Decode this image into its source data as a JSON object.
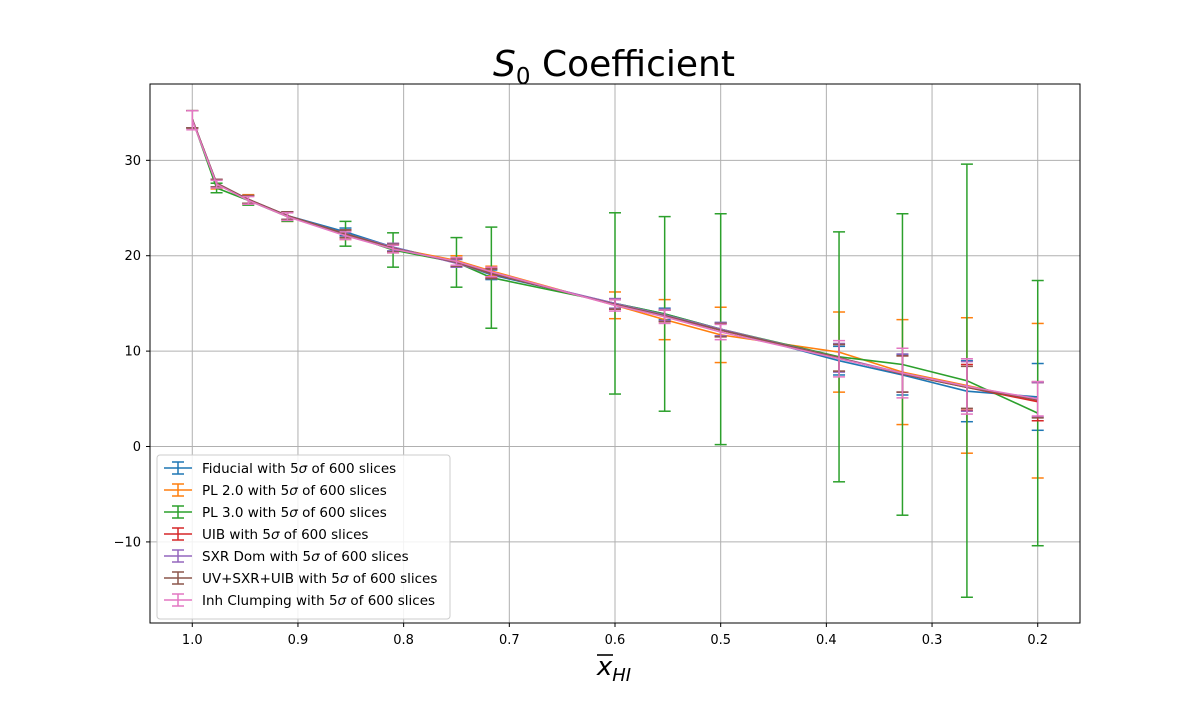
{
  "chart_data": {
    "type": "line",
    "title": "S₀ Coefficient",
    "title_parts": {
      "main": "S",
      "subscript": "0",
      "rest": " Coefficient"
    },
    "xlabel": "x̅_HI",
    "xlabel_parts": {
      "main": "x",
      "subscript": "HI",
      "overline": true
    },
    "ylabel": "",
    "xlim": [
      1.04,
      0.16
    ],
    "ylim": [
      -18.5,
      38
    ],
    "x_inverted": true,
    "grid": true,
    "legend_position": "lower-left",
    "x_ticks": [
      1.0,
      0.9,
      0.8,
      0.7,
      0.6,
      0.5,
      0.4,
      0.3,
      0.2
    ],
    "x_tick_labels": [
      "1.0",
      "0.9",
      "0.8",
      "0.7",
      "0.6",
      "0.5",
      "0.4",
      "0.3",
      "0.2"
    ],
    "y_ticks": [
      -10,
      0,
      10,
      20,
      30
    ],
    "y_tick_labels": [
      "−10",
      "0",
      "10",
      "20",
      "30"
    ],
    "x": [
      1.0,
      0.977,
      0.947,
      0.91,
      0.855,
      0.81,
      0.75,
      0.717,
      0.6,
      0.553,
      0.5,
      0.388,
      0.328,
      0.267,
      0.2
    ],
    "series": [
      {
        "name": "Fiducial with 5σ of 600 slices",
        "legend_parts": [
          "Fiducial with 5",
          "σ",
          " of 600 slices"
        ],
        "color": "#1f77b4",
        "values": [
          34.3,
          27.6,
          25.9,
          24.2,
          22.5,
          20.9,
          19.3,
          18.0,
          15.0,
          13.9,
          12.3,
          9.0,
          7.5,
          5.8,
          5.2
        ],
        "errors": [
          0.9,
          0.4,
          0.4,
          0.4,
          0.4,
          0.4,
          0.5,
          0.5,
          0.5,
          0.6,
          0.7,
          1.5,
          2.1,
          3.2,
          3.5
        ]
      },
      {
        "name": "PL 2.0 with 5σ of 600 slices",
        "legend_parts": [
          "PL 2.0 with 5",
          "σ",
          " of 600 slices"
        ],
        "color": "#ff7f0e",
        "values": [
          34.3,
          27.5,
          25.9,
          24.1,
          22.2,
          20.8,
          19.5,
          18.4,
          14.8,
          13.3,
          11.7,
          9.9,
          7.8,
          6.4,
          4.8
        ],
        "errors": [
          0.9,
          0.5,
          0.5,
          0.5,
          0.5,
          0.5,
          0.5,
          0.5,
          1.4,
          2.1,
          2.9,
          4.2,
          5.5,
          7.1,
          8.1
        ]
      },
      {
        "name": "PL 3.0 with 5σ of 600 slices",
        "legend_parts": [
          "PL 3.0 with 5",
          "σ",
          " of 600 slices"
        ],
        "color": "#2ca02c",
        "values": [
          34.3,
          27.1,
          25.8,
          24.1,
          22.3,
          20.6,
          19.3,
          17.7,
          15.0,
          13.9,
          12.3,
          9.4,
          8.6,
          6.9,
          3.5
        ],
        "errors": [
          0.9,
          0.5,
          0.5,
          0.5,
          1.3,
          1.8,
          2.6,
          5.3,
          9.5,
          10.2,
          12.1,
          13.1,
          15.8,
          22.7,
          13.9
        ]
      },
      {
        "name": "UIB with 5σ of 600 slices",
        "legend_parts": [
          "UIB with 5",
          "σ",
          " of 600 slices"
        ],
        "color": "#d62728",
        "values": [
          34.3,
          27.6,
          25.9,
          24.2,
          22.3,
          20.8,
          19.3,
          18.2,
          14.9,
          13.7,
          12.2,
          9.3,
          7.6,
          6.2,
          4.7
        ],
        "errors": [
          0.9,
          0.4,
          0.4,
          0.4,
          0.4,
          0.4,
          0.4,
          0.5,
          0.5,
          0.6,
          0.7,
          1.4,
          1.9,
          2.4,
          2.0
        ]
      },
      {
        "name": "SXR Dom with 5σ of 600 slices",
        "legend_parts": [
          "SXR Dom with 5",
          "σ",
          " of 600 slices"
        ],
        "color": "#9467bd",
        "values": [
          34.3,
          27.6,
          25.9,
          24.2,
          22.3,
          20.9,
          19.2,
          18.1,
          15.0,
          13.8,
          12.3,
          9.3,
          7.7,
          6.3,
          4.9
        ],
        "errors": [
          0.9,
          0.4,
          0.4,
          0.4,
          0.4,
          0.4,
          0.4,
          0.5,
          0.5,
          0.6,
          0.7,
          1.5,
          2.0,
          2.6,
          1.8
        ]
      },
      {
        "name": "UV+SXR+UIB with 5σ of 600 slices",
        "legend_parts": [
          "UV+SXR+UIB with 5",
          "σ",
          " of 600 slices"
        ],
        "color": "#8c564b",
        "values": [
          34.3,
          27.6,
          25.9,
          24.2,
          22.3,
          20.8,
          19.3,
          18.1,
          14.9,
          13.7,
          12.2,
          9.3,
          7.6,
          6.2,
          4.9
        ],
        "errors": [
          0.9,
          0.4,
          0.4,
          0.4,
          0.4,
          0.4,
          0.4,
          0.5,
          0.5,
          0.6,
          0.7,
          1.4,
          1.9,
          2.2,
          1.9
        ]
      },
      {
        "name": "Inh Clumping with 5σ of 600 slices",
        "legend_parts": [
          "Inh Clumping with 5",
          "σ",
          " of 600 slices"
        ],
        "color": "#e377c2",
        "values": [
          34.2,
          27.5,
          25.8,
          24.1,
          22.1,
          20.7,
          19.4,
          18.3,
          14.8,
          13.6,
          12.0,
          9.2,
          7.7,
          6.3,
          5.0
        ],
        "errors": [
          1.0,
          0.4,
          0.4,
          0.4,
          0.4,
          0.4,
          0.4,
          0.5,
          0.6,
          0.7,
          0.8,
          1.9,
          2.6,
          2.9,
          1.8
        ]
      }
    ]
  }
}
